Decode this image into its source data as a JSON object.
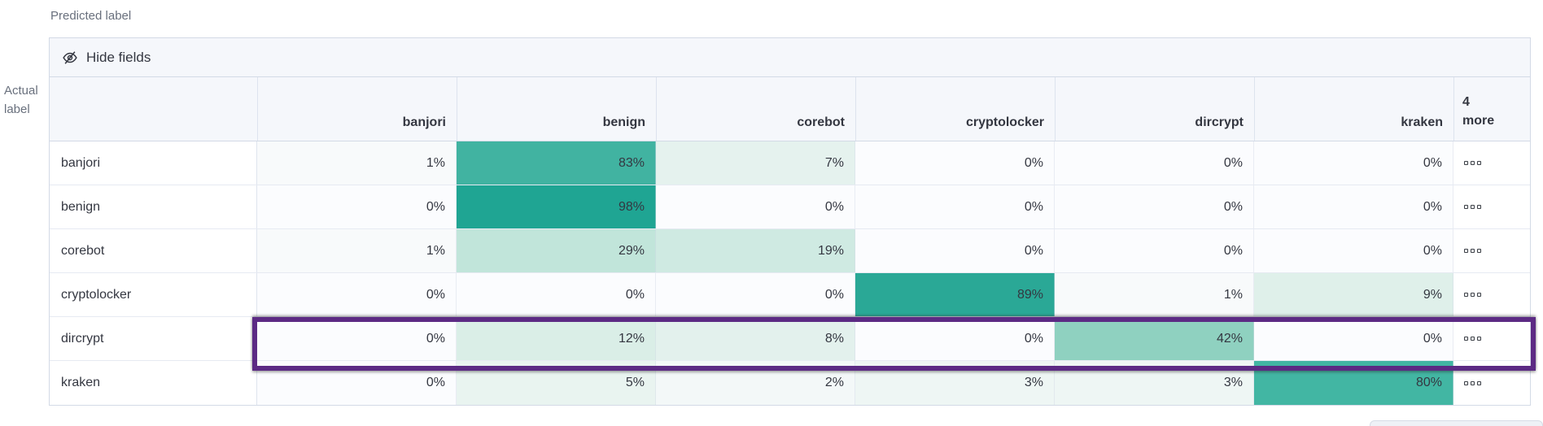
{
  "axis": {
    "predicted_label": "Predicted label",
    "actual_label": "Actual\nlabel"
  },
  "toolbar": {
    "hide_fields_label": "Hide fields",
    "hide_fields_icon": "eye-closed-icon"
  },
  "grid": {
    "columns": [
      "banjori",
      "benign",
      "corebot",
      "cryptolocker",
      "dircrypt",
      "kraken"
    ],
    "more_columns_header": "4\nmore",
    "value_suffix": "%",
    "row_actions_icon": "boxes-horizontal-icon",
    "highlighted_row": "dircrypt",
    "rows": [
      {
        "label": "banjori",
        "values": [
          1,
          83,
          7,
          0,
          0,
          0
        ],
        "highlighted": false
      },
      {
        "label": "benign",
        "values": [
          0,
          98,
          0,
          0,
          0,
          0
        ],
        "highlighted": false
      },
      {
        "label": "corebot",
        "values": [
          1,
          29,
          19,
          0,
          0,
          0
        ],
        "highlighted": false
      },
      {
        "label": "cryptolocker",
        "values": [
          0,
          0,
          0,
          89,
          1,
          9
        ],
        "highlighted": false
      },
      {
        "label": "dircrypt",
        "values": [
          0,
          12,
          8,
          0,
          42,
          0
        ],
        "highlighted": true
      },
      {
        "label": "kraken",
        "values": [
          0,
          5,
          2,
          3,
          3,
          80
        ],
        "highlighted": false
      }
    ]
  },
  "colors": {
    "highlight_outline": "#5c2a84",
    "heat_max": "#1fa593",
    "heat_scale": {
      "0": "#fbfcfe",
      "1": "#f8fafb",
      "2": "#f3f8f8",
      "3": "#eef6f4",
      "5": "#e9f4f0",
      "7": "#e5f2ee",
      "8": "#e3f1ed",
      "9": "#dff0ea",
      "12": "#daeee7",
      "19": "#cfeae2",
      "29": "#c1e5da",
      "42": "#8fd1c0",
      "80": "#42b6a3",
      "83": "#41b3a1",
      "89": "#2aa896",
      "98": "#1fa593"
    }
  }
}
